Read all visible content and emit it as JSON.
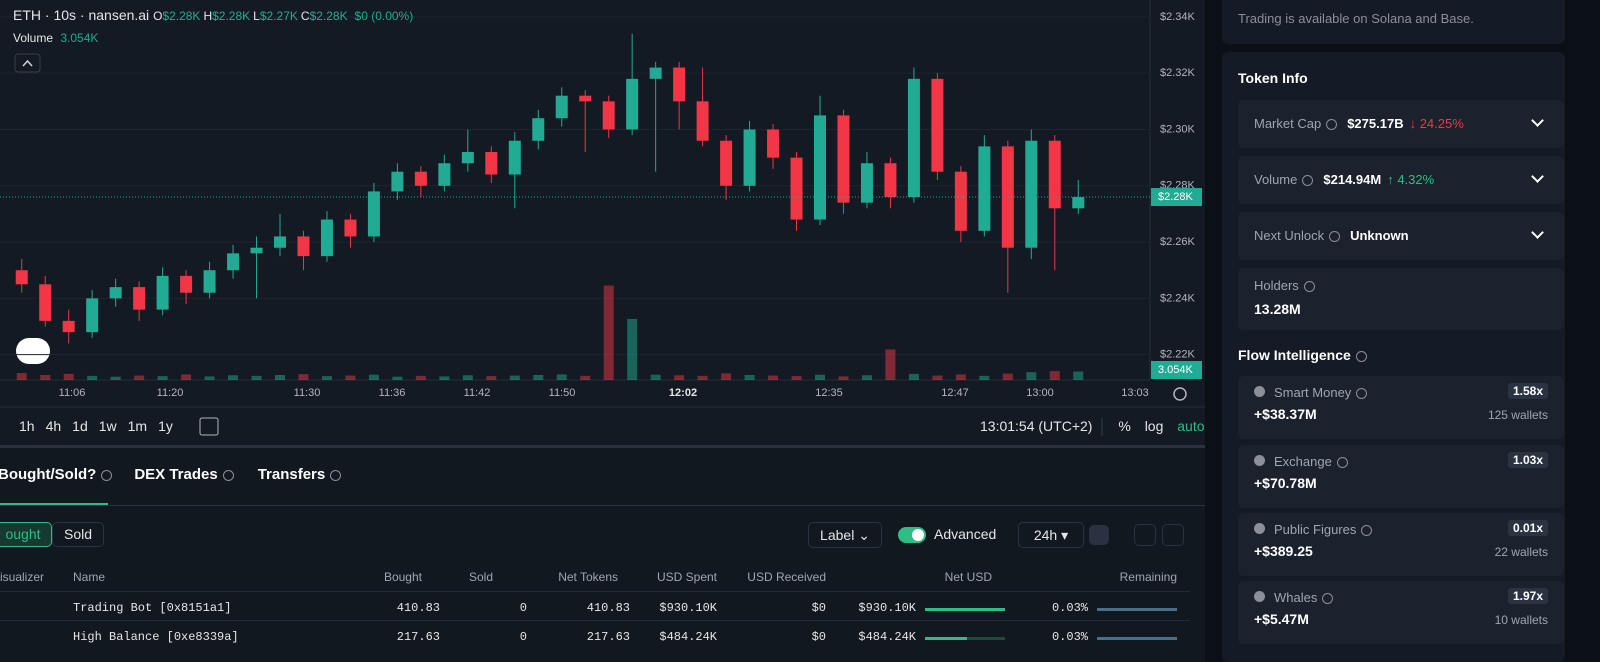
{
  "chart_data": {
    "type": "candlestick",
    "title": "ETH · 10s · nansen.ai",
    "ohlc": [
      {
        "key": "O",
        "value": "$2.28K"
      },
      {
        "key": "H",
        "value": "$2.28K"
      },
      {
        "key": "L",
        "value": "$2.27K"
      },
      {
        "key": "C",
        "value": "$2.28K"
      }
    ],
    "change": "$0 (0.00%)",
    "volume_label": "Volume",
    "volume_value": "3.054K",
    "up_color": "#22ab94",
    "down_color": "#f23645",
    "open": [
      2250,
      2245,
      2232,
      2228,
      2240,
      2244,
      2236,
      2248,
      2242,
      2250,
      2256,
      2258,
      2262,
      2255,
      2268,
      2262,
      2278,
      2285,
      2280,
      2288,
      2292,
      2284,
      2296,
      2304,
      2312,
      2310,
      2300,
      2318,
      2322,
      2310,
      2296,
      2280,
      2300,
      2290,
      2268,
      2305,
      2274,
      2288,
      2276,
      2318,
      2285,
      2264,
      2294,
      2258,
      2296,
      2272
    ],
    "high": [
      2254,
      2248,
      2236,
      2243,
      2247,
      2246,
      2251,
      2250,
      2253,
      2259,
      2262,
      2270,
      2264,
      2271,
      2270,
      2281,
      2288,
      2287,
      2291,
      2300,
      2294,
      2299,
      2307,
      2315,
      2314,
      2312,
      2334,
      2324,
      2324,
      2322,
      2298,
      2303,
      2302,
      2292,
      2312,
      2307,
      2292,
      2290,
      2322,
      2320,
      2287,
      2298,
      2296,
      2300,
      2298,
      2282
    ],
    "low": [
      2242,
      2230,
      2224,
      2226,
      2237,
      2232,
      2234,
      2238,
      2240,
      2247,
      2240,
      2255,
      2250,
      2253,
      2258,
      2260,
      2275,
      2276,
      2278,
      2285,
      2281,
      2272,
      2293,
      2301,
      2292,
      2297,
      2298,
      2285,
      2300,
      2294,
      2275,
      2278,
      2286,
      2264,
      2266,
      2270,
      2272,
      2272,
      2274,
      2282,
      2260,
      2262,
      2242,
      2254,
      2250,
      2270
    ],
    "close": [
      2245,
      2232,
      2228,
      2240,
      2244,
      2236,
      2248,
      2242,
      2250,
      2256,
      2258,
      2262,
      2255,
      2268,
      2262,
      2278,
      2285,
      2280,
      2288,
      2292,
      2284,
      2296,
      2304,
      2312,
      2310,
      2300,
      2318,
      2322,
      2310,
      2296,
      2280,
      2300,
      2290,
      2268,
      2305,
      2274,
      2288,
      2276,
      2318,
      2285,
      2264,
      2294,
      2258,
      2296,
      2272,
      2276
    ],
    "volume": [
      2500,
      1800,
      2200,
      1500,
      1200,
      1600,
      1400,
      2000,
      1300,
      1700,
      1500,
      1800,
      2100,
      1400,
      1600,
      1900,
      1200,
      1500,
      1300,
      1700,
      1400,
      1600,
      1800,
      2000,
      1500,
      34000,
      22000,
      1900,
      1700,
      1500,
      2400,
      1800,
      1600,
      1400,
      1900,
      1300,
      1700,
      11000,
      2200,
      1600,
      2000,
      1500,
      2300,
      2800,
      3200,
      3054
    ],
    "volume_lim": [
      0,
      36000
    ],
    "ylim": [
      2211,
      2346
    ],
    "yticks": [
      {
        "value": 2340,
        "label": "$2.34K"
      },
      {
        "value": 2320,
        "label": "$2.32K"
      },
      {
        "value": 2300,
        "label": "$2.30K"
      },
      {
        "value": 2280,
        "label": "$2.28K"
      },
      {
        "value": 2260,
        "label": "$2.26K"
      },
      {
        "value": 2240,
        "label": "$2.24K"
      },
      {
        "value": 2220,
        "label": "$2.22K"
      }
    ],
    "last_price": {
      "value": 2276,
      "label": "$2.28K"
    },
    "time_labels": [
      "11:06",
      "11:20",
      "11:30",
      "11:36",
      "11:42",
      "11:50",
      "12:02",
      "12:35",
      "12:47",
      "13:00",
      "13:03"
    ],
    "grid": true
  },
  "toolbar": {
    "intervals": [
      "1h",
      "4h",
      "1d",
      "1w",
      "1m",
      "1y"
    ],
    "clock": "13:01:54 (UTC+2)",
    "percent": "%",
    "log": "log",
    "auto": "auto"
  },
  "tabs": [
    "Bought/Sold?",
    "DEX Trades",
    "Transfers"
  ],
  "filters": {
    "bought": "ought",
    "sold": "Sold",
    "label": "Label",
    "advanced": "Advanced",
    "range": "24h"
  },
  "table": {
    "columns": [
      "isualizer",
      "Name",
      "Bought",
      "Sold",
      "Net Tokens",
      "USD Spent",
      "USD Received",
      "Net USD",
      "Remaining"
    ],
    "rows": [
      [
        "Trading Bot [0x8151a1]",
        "410.83",
        "0",
        "410.83",
        "$930.10K",
        "$0",
        "$930.10K",
        "0.03%"
      ],
      [
        "High Balance [0xe8339a]",
        "217.63",
        "0",
        "217.63",
        "$484.24K",
        "$0",
        "$484.24K",
        "0.03%"
      ]
    ]
  },
  "side": {
    "notice": "Trading is available on Solana and Base.",
    "token_info": {
      "title": "Token Info",
      "cards": [
        {
          "label": "Market Cap",
          "value": "$275.17B",
          "change": "↓ 24.25%"
        },
        {
          "label": "Volume",
          "value": "$214.94M",
          "change": "↑ 4.32%"
        },
        {
          "label": "Next Unlock",
          "value": "Unknown"
        },
        {
          "label": "Holders",
          "value": "13.28M"
        }
      ]
    },
    "flow": {
      "title": "Flow Intelligence",
      "items": [
        {
          "name": "Smart Money",
          "value": "+$38.37M",
          "ratio": "1.58x",
          "wallets": "125 wallets"
        },
        {
          "name": "Exchange",
          "value": "+$70.78M",
          "ratio": "1.03x"
        },
        {
          "name": "Public Figures",
          "value": "+$389.25",
          "ratio": "0.01x",
          "wallets": "22 wallets"
        },
        {
          "name": "Whales",
          "value": "+$5.47M",
          "ratio": "1.97x",
          "wallets": "10 wallets"
        }
      ]
    }
  }
}
